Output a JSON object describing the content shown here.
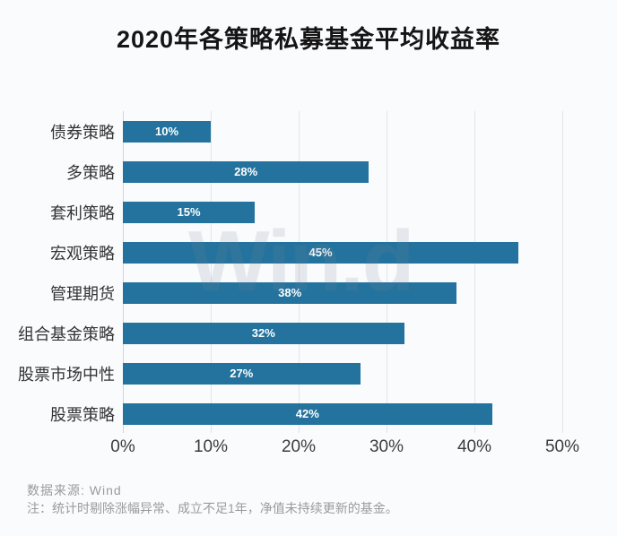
{
  "title": "2020年各策略私募基金平均收益率",
  "watermark": "Win.d",
  "chart_data": {
    "type": "bar",
    "orientation": "horizontal",
    "title": "2020年各策略私募基金平均收益率",
    "categories": [
      "债券策略",
      "多策略",
      "套利策略",
      "宏观策略",
      "管理期货",
      "组合基金策略",
      "股票市场中性",
      "股票策略"
    ],
    "values": [
      10,
      28,
      15,
      45,
      38,
      32,
      27,
      42
    ],
    "value_labels": [
      "10%",
      "28%",
      "15%",
      "45%",
      "38%",
      "32%",
      "27%",
      "42%"
    ],
    "x_ticks": [
      "0%",
      "10%",
      "20%",
      "30%",
      "40%",
      "50%"
    ],
    "xlim": [
      0,
      50
    ],
    "grid": true,
    "legend": false,
    "bar_color": "#23739e",
    "value_label_color": "#ffffff",
    "gridline_color": "#e2e4e8"
  },
  "footer": {
    "source": "数据来源: Wind",
    "note": "注：统计时剔除涨幅异常、成立不足1年，净值未持续更新的基金。"
  },
  "colors": {
    "background": "#fafbfd",
    "title_text": "#151515",
    "category_text": "#333333",
    "tick_text": "#3c3c3c",
    "footer_text": "#9b9b9b"
  }
}
